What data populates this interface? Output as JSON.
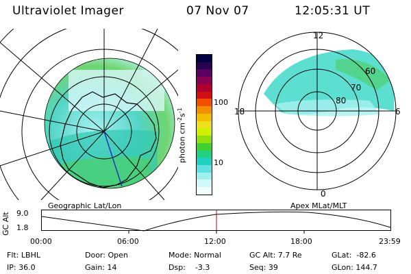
{
  "header": {
    "instrument": "Ultraviolet Imager",
    "date": "07 Nov 07",
    "time": "12:05:31 UT"
  },
  "colorbar": {
    "unit_label": "photon cm",
    "unit_sup1": "-2",
    "unit_s": "s",
    "unit_sup2": "-1",
    "tick_100": "100",
    "tick_10": "10",
    "colors": [
      "#000040",
      "#2a0050",
      "#5a0060",
      "#8a0050",
      "#b00030",
      "#d01010",
      "#f05000",
      "#f09000",
      "#f0c000",
      "#f0e020",
      "#d0f000",
      "#90e010",
      "#40d030",
      "#20d080",
      "#20d0c0",
      "#60e0e0",
      "#a0f0f0",
      "#d0f8f8",
      "#f0ffff"
    ]
  },
  "left_map": {
    "caption": "Geographic Lat/Lon"
  },
  "right_map": {
    "caption": "Apex MLat/MLT",
    "mlt_12": "12",
    "mlt_18": "18",
    "mlt_6": "6",
    "mlt_0": "0",
    "lat_60": "60",
    "lat_70": "70",
    "lat_80": "80"
  },
  "altitude_plot": {
    "y_axis_label": "GC Alt",
    "y_max": "9.0",
    "y_min": "1.8",
    "x_ticks": [
      "00:00",
      "06:00",
      "12:00",
      "18:00",
      "23:59"
    ],
    "marker_color": "#c00000"
  },
  "footer": {
    "flt": "Flt: LBHL",
    "ip": "IP: 36.0",
    "door": "Door: Open",
    "gain": "Gain: 14",
    "mode": "Mode: Normal",
    "dsp": "Dsp:    -3.3",
    "gc_alt": "GC Alt: 7.7 Re",
    "seq": "Seq: 39",
    "glat": "GLat:  -82.6",
    "glon": "GLon: 144.7"
  }
}
